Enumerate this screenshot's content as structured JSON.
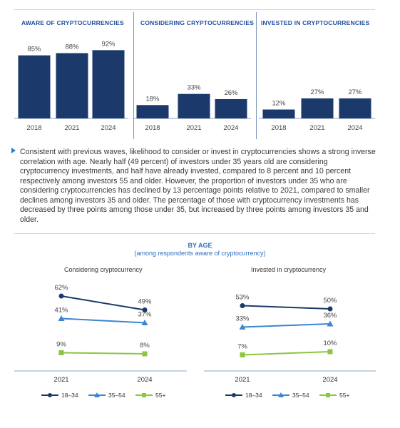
{
  "chart_data": [
    {
      "type": "bar",
      "title": "AWARE OF CRYPTOCURRENCIES",
      "categories": [
        "2018",
        "2021",
        "2024"
      ],
      "values": [
        85,
        88,
        92
      ],
      "labels": [
        "85%",
        "88%",
        "92%"
      ],
      "color": "#1b3a6b"
    },
    {
      "type": "bar",
      "title": "CONSIDERING CRYPTOCURRENCIES",
      "categories": [
        "2018",
        "2021",
        "2024"
      ],
      "values": [
        18,
        33,
        26
      ],
      "labels": [
        "18%",
        "33%",
        "26%"
      ],
      "color": "#1b3a6b"
    },
    {
      "type": "bar",
      "title": "INVESTED IN CRYPTOCURRENCIES",
      "categories": [
        "2018",
        "2021",
        "2024"
      ],
      "values": [
        12,
        27,
        27
      ],
      "labels": [
        "12%",
        "27%",
        "27%"
      ],
      "color": "#1b3a6b"
    },
    {
      "type": "line",
      "title": "Considering cryptocurrency",
      "x": [
        "2021",
        "2024"
      ],
      "series": [
        {
          "name": "18–34",
          "values": [
            62,
            49
          ],
          "labels": [
            "62%",
            "49%"
          ],
          "color": "#1b3a6b",
          "marker": "circle"
        },
        {
          "name": "35–54",
          "values": [
            41,
            37
          ],
          "labels": [
            "41%",
            "37%"
          ],
          "color": "#3a86d1",
          "marker": "triangle"
        },
        {
          "name": "55+",
          "values": [
            9,
            8
          ],
          "labels": [
            "9%",
            "8%"
          ],
          "color": "#8cc63f",
          "marker": "square"
        }
      ]
    },
    {
      "type": "line",
      "title": "Invested in cryptocurrency",
      "x": [
        "2021",
        "2024"
      ],
      "series": [
        {
          "name": "18–34",
          "values": [
            53,
            50
          ],
          "labels": [
            "53%",
            "50%"
          ],
          "color": "#1b3a6b",
          "marker": "circle"
        },
        {
          "name": "35–54",
          "values": [
            33,
            36
          ],
          "labels": [
            "33%",
            "36%"
          ],
          "color": "#3a86d1",
          "marker": "triangle"
        },
        {
          "name": "55+",
          "values": [
            7,
            10
          ],
          "labels": [
            "7%",
            "10%"
          ],
          "color": "#8cc63f",
          "marker": "square"
        }
      ]
    }
  ],
  "paragraph": "Consistent with previous waves, likelihood to consider or invest in cryptocurrencies shows a strong inverse correlation with age. Nearly half (49 percent) of investors under 35 years old are considering cryptocurrency investments, and half have already invested, compared to 8 percent and 10 percent respectively among investors 55 and older. However, the proportion of investors under 35 who are considering cryptocurrencies has declined by 13 percentage points relative to 2021, compared to smaller declines among investors 35 and older. The percentage of those with cryptocurrency investments has decreased by three points among those under 35, but increased by three points among investors 35 and older.",
  "section": {
    "title": "BY AGE",
    "subtitle": "(among respondents aware of cryptocurrency)"
  }
}
